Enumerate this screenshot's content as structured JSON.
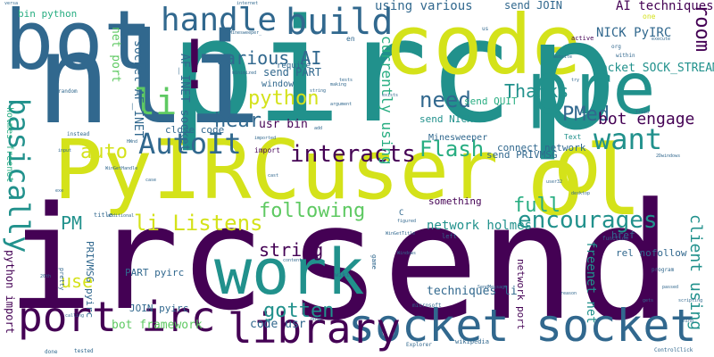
{
  "palette": {
    "purple": "#440154",
    "indigo": "#3b518b",
    "blue": "#2c728e",
    "teal": "#21918c",
    "green": "#27ad81",
    "lime": "#5ec962",
    "yellow": "#d4e21a",
    "gold": "#fde725",
    "navy": "#31688e"
  },
  "words": [
    {
      "text": "send",
      "color": "purple"
    },
    {
      "text": "irc",
      "color": "purple"
    },
    {
      "text": "PyIRCuser",
      "color": "yellow"
    },
    {
      "text": "pirc",
      "color": "teal"
    },
    {
      "text": "nli",
      "color": "navy"
    },
    {
      "text": "bot",
      "color": "navy"
    },
    {
      "text": "code",
      "color": "yellow"
    },
    {
      "text": "p",
      "color": "teal"
    },
    {
      "text": "pre",
      "color": "teal"
    },
    {
      "text": "work",
      "color": "teal"
    },
    {
      "text": "socket",
      "color": "navy"
    },
    {
      "text": "socket",
      "color": "navy"
    },
    {
      "text": "port irc",
      "color": "purple"
    },
    {
      "text": "library",
      "color": "purple"
    },
    {
      "text": "ol",
      "color": "yellow"
    },
    {
      "text": "o",
      "color": "yellow"
    },
    {
      "text": "build",
      "color": "navy"
    },
    {
      "text": "handle",
      "color": "navy"
    },
    {
      "text": "AutoIt",
      "color": "navy"
    },
    {
      "text": "want",
      "color": "teal"
    },
    {
      "text": "basically",
      "color": "teal"
    },
    {
      "text": "interacts",
      "color": "purple"
    },
    {
      "text": "encourages",
      "color": "teal"
    },
    {
      "text": "li Listens",
      "color": "yellow"
    },
    {
      "text": "following",
      "color": "lime"
    },
    {
      "text": "string",
      "color": "purple"
    },
    {
      "text": "gotten",
      "color": "teal"
    },
    {
      "text": "full",
      "color": "green"
    },
    {
      "text": "Flash",
      "color": "green"
    },
    {
      "text": "need",
      "color": "navy"
    },
    {
      "text": "Thanks",
      "color": "teal"
    },
    {
      "text": "PMed",
      "color": "navy"
    },
    {
      "text": "bot engage",
      "color": "purple"
    },
    {
      "text": "room",
      "color": "purple"
    },
    {
      "text": "hear",
      "color": "navy"
    },
    {
      "text": "auto",
      "color": "yellow"
    },
    {
      "text": "python",
      "color": "yellow"
    },
    {
      "text": "various AI",
      "color": "navy"
    },
    {
      "text": "li",
      "color": "lime"
    },
    {
      "text": "!",
      "color": "purple"
    },
    {
      "text": "use",
      "color": "yellow"
    },
    {
      "text": "PM",
      "color": "teal"
    },
    {
      "text": "client using",
      "color": "teal"
    },
    {
      "text": "network holmes",
      "color": "teal"
    },
    {
      "text": "freenet net",
      "color": "teal"
    },
    {
      "text": "AI techniques",
      "color": "purple"
    },
    {
      "text": "NICK PyIRC",
      "color": "navy"
    },
    {
      "text": "socket SOCK_STREAM",
      "color": "teal"
    },
    {
      "text": "send PART",
      "color": "navy"
    },
    {
      "text": "send JOIN",
      "color": "navy"
    },
    {
      "text": "using various",
      "color": "navy"
    },
    {
      "text": "currently using",
      "color": "green"
    },
    {
      "text": "send NICK",
      "color": "teal"
    },
    {
      "text": "send QUIT",
      "color": "green"
    },
    {
      "text": "send PRIVMSG",
      "color": "navy"
    },
    {
      "text": "connect network",
      "color": "navy"
    },
    {
      "text": "Minesweeper",
      "color": "navy"
    },
    {
      "text": "socket AF_INET",
      "color": "navy"
    },
    {
      "text": "AF_INET socket",
      "color": "navy"
    },
    {
      "text": "net port",
      "color": "lime"
    },
    {
      "text": "bin python",
      "color": "green"
    },
    {
      "text": "usr bin",
      "color": "purple"
    },
    {
      "text": "close code",
      "color": "navy"
    },
    {
      "text": "code usr",
      "color": "navy"
    },
    {
      "text": "bot framework",
      "color": "lime"
    },
    {
      "text": "JOIN pyirc",
      "color": "navy"
    },
    {
      "text": "PART pyirc",
      "color": "navy"
    },
    {
      "text": "PRIVMSG pyirc",
      "color": "navy"
    },
    {
      "text": "python import",
      "color": "purple"
    },
    {
      "text": "holmes freenet",
      "color": "green"
    },
    {
      "text": "techniques li",
      "color": "navy"
    },
    {
      "text": "network port",
      "color": "purple"
    },
    {
      "text": "rel nofollow",
      "color": "navy"
    },
    {
      "text": "href",
      "color": "navy"
    },
    {
      "text": "something",
      "color": "purple"
    },
    {
      "text": "window",
      "color": "navy"
    },
    {
      "text": "require",
      "color": "navy"
    },
    {
      "text": "Text",
      "color": "teal"
    },
    {
      "text": "en",
      "color": "navy"
    },
    {
      "text": "C",
      "color": "navy"
    },
    {
      "text": "one",
      "color": "yellow"
    },
    {
      "text": "active",
      "color": "purple"
    },
    {
      "text": "us",
      "color": "navy"
    },
    {
      "text": "org",
      "color": "navy"
    },
    {
      "text": "within",
      "color": "navy"
    },
    {
      "text": "import",
      "color": "purple"
    },
    {
      "text": "instead",
      "color": "navy"
    },
    {
      "text": "random",
      "color": "navy"
    },
    {
      "text": "title",
      "color": "navy"
    },
    {
      "text": "pretty",
      "color": "navy"
    },
    {
      "text": "done",
      "color": "navy"
    },
    {
      "text": "tested",
      "color": "navy"
    },
    {
      "text": "left",
      "color": "navy"
    },
    {
      "text": "wiki",
      "color": "navy"
    },
    {
      "text": "game",
      "color": "navy"
    },
    {
      "text": "microsoft",
      "color": "navy"
    },
    {
      "text": "wikipedia",
      "color": "navy"
    },
    {
      "text": "Explorer",
      "color": "navy"
    },
    {
      "text": "ControlClick",
      "color": "navy"
    },
    {
      "text": "program",
      "color": "navy"
    },
    {
      "text": "gets",
      "color": "navy"
    },
    {
      "text": "function",
      "color": "navy"
    },
    {
      "text": "desktop",
      "color": "navy"
    },
    {
      "text": "figured",
      "color": "navy"
    },
    {
      "text": "content",
      "color": "navy"
    },
    {
      "text": "cast",
      "color": "navy"
    },
    {
      "text": "additional",
      "color": "navy"
    },
    {
      "text": "WinGetHandle",
      "color": "navy"
    },
    {
      "text": "WinGetTitle",
      "color": "navy"
    },
    {
      "text": "Minesweeper_",
      "color": "navy"
    },
    {
      "text": "argument",
      "color": "navy"
    },
    {
      "text": "string",
      "color": "navy"
    },
    {
      "text": "exists",
      "color": "navy"
    },
    {
      "text": "tests",
      "color": "navy"
    },
    {
      "text": "website",
      "color": "navy"
    },
    {
      "text": "execute",
      "color": "navy"
    },
    {
      "text": "internet",
      "color": "navy"
    },
    {
      "text": "minimized",
      "color": "navy"
    },
    {
      "text": "try",
      "color": "navy"
    },
    {
      "text": "user32",
      "color": "navy"
    },
    {
      "text": "reason",
      "color": "navy"
    },
    {
      "text": "passed",
      "color": "navy"
    },
    {
      "text": "scripting",
      "color": "navy"
    },
    {
      "text": "SendMessage",
      "color": "navy"
    },
    {
      "text": "2Dwindows",
      "color": "navy"
    },
    {
      "text": "thing",
      "color": "navy"
    },
    {
      "text": "tried",
      "color": "navy"
    },
    {
      "text": "calling",
      "color": "navy"
    },
    {
      "text": "20th",
      "color": "navy"
    },
    {
      "text": "nbsp",
      "color": "navy"
    },
    {
      "text": "case",
      "color": "navy"
    },
    {
      "text": "add",
      "color": "navy"
    },
    {
      "text": "exe",
      "color": "navy"
    },
    {
      "text": "imported",
      "color": "navy"
    },
    {
      "text": "input",
      "color": "navy"
    },
    {
      "text": "HWnd",
      "color": "navy"
    },
    {
      "text": "making",
      "color": "navy"
    },
    {
      "text": "Windows",
      "color": "navy"
    },
    {
      "text": "versa",
      "color": "navy"
    }
  ]
}
